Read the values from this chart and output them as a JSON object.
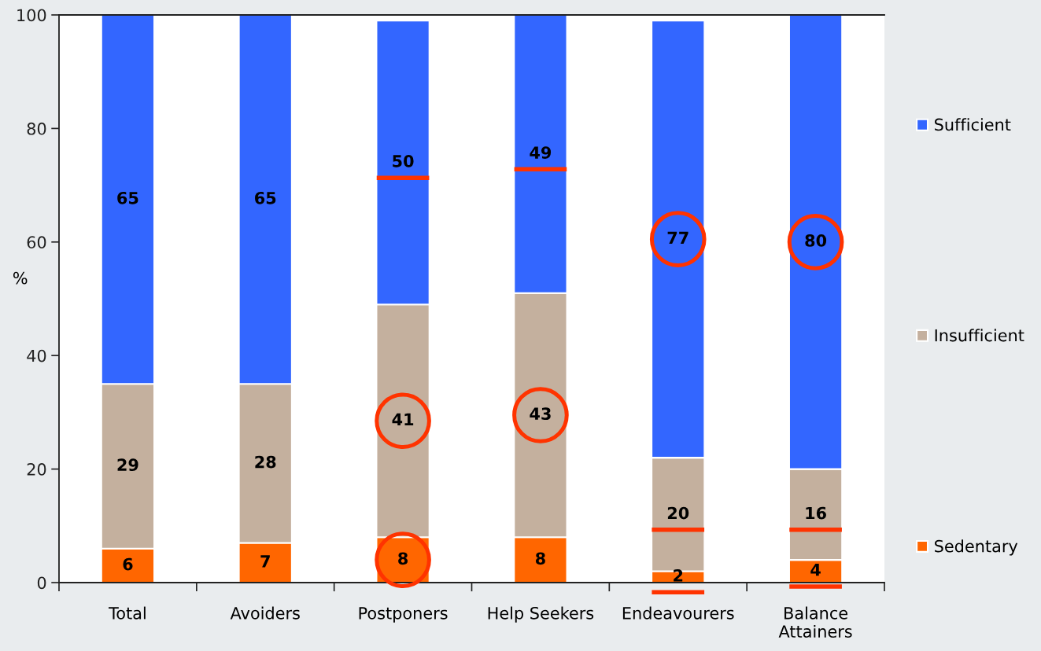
{
  "chart_data": {
    "type": "bar",
    "stacked": true,
    "categories": [
      "Total",
      "Avoiders",
      "Postponers",
      "Help Seekers",
      "Endeavourers",
      "Balance\nAttainers"
    ],
    "series": [
      {
        "name": "Sedentary",
        "color": "#ff6600",
        "values": [
          6,
          7,
          8,
          8,
          2,
          4
        ]
      },
      {
        "name": "Insufficient",
        "color": "#c4b09e",
        "values": [
          29,
          28,
          41,
          43,
          20,
          16
        ]
      },
      {
        "name": "Sufficient",
        "color": "#3366ff",
        "values": [
          65,
          65,
          50,
          49,
          77,
          80
        ]
      }
    ],
    "ylabel": "%",
    "ylim": [
      0,
      100
    ],
    "yticks": [
      0,
      20,
      40,
      60,
      80,
      100
    ],
    "data_labels": true,
    "legend": "right"
  }
}
